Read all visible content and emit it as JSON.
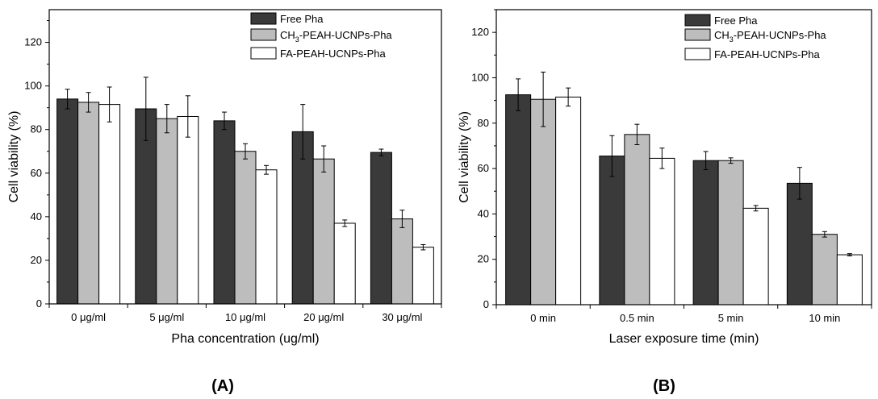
{
  "chart_data": [
    {
      "type": "bar",
      "panel_label": "(A)",
      "xlabel": "Pha concentration (ug/ml)",
      "ylabel": "Cell viability (%)",
      "ylim": [
        0,
        135
      ],
      "yticks": [
        0,
        20,
        40,
        60,
        80,
        100,
        120
      ],
      "categories": [
        "0 μg/ml",
        "5 μg/ml",
        "10 μg/ml",
        "20 μg/ml",
        "30 μg/ml"
      ],
      "series": [
        {
          "name": "Free Pha",
          "legend_main": "Free Pha",
          "legend_sub": "",
          "legend_rest": "",
          "color": "#3a3a3a",
          "values": [
            94,
            89.5,
            84,
            79,
            69.5
          ],
          "errors": [
            4.5,
            14.5,
            4,
            12.5,
            1.5
          ]
        },
        {
          "name": "CH3-PEAH-UCNPs-Pha",
          "legend_main": "CH",
          "legend_sub": "3",
          "legend_rest": "-PEAH-UCNPs-Pha",
          "color": "#bdbdbd",
          "values": [
            92.5,
            85,
            70,
            66.5,
            39
          ],
          "errors": [
            4.5,
            6.5,
            3.5,
            6,
            4
          ]
        },
        {
          "name": "FA-PEAH-UCNPs-Pha",
          "legend_main": "FA-PEAH-UCNPs-Pha",
          "legend_sub": "",
          "legend_rest": "",
          "color": "#ffffff",
          "values": [
            91.5,
            86,
            61.5,
            37,
            26
          ],
          "errors": [
            8,
            9.5,
            2,
            1.5,
            1.2
          ]
        }
      ],
      "legend_position": "top-right",
      "grid": false
    },
    {
      "type": "bar",
      "panel_label": "(B)",
      "xlabel": "Laser exposure time (min)",
      "ylabel": "Cell viability (%)",
      "ylim": [
        0,
        130
      ],
      "yticks": [
        0,
        20,
        40,
        60,
        80,
        100,
        120
      ],
      "categories": [
        "0 min",
        "0.5 min",
        "5 min",
        "10 min"
      ],
      "series": [
        {
          "name": "Free Pha",
          "legend_main": "Free Pha",
          "legend_sub": "",
          "legend_rest": "",
          "color": "#3a3a3a",
          "values": [
            92.5,
            65.5,
            63.5,
            53.5
          ],
          "errors": [
            7,
            9,
            4,
            7
          ]
        },
        {
          "name": "CH3-PEAH-UCNPs-Pha",
          "legend_main": "CH",
          "legend_sub": "3",
          "legend_rest": "-PEAH-UCNPs-Pha",
          "color": "#bdbdbd",
          "values": [
            90.5,
            75,
            63.5,
            31
          ],
          "errors": [
            12,
            4.5,
            1.2,
            1.2
          ]
        },
        {
          "name": "FA-PEAH-UCNPs-Pha",
          "legend_main": "FA-PEAH-UCNPs-Pha",
          "legend_sub": "",
          "legend_rest": "",
          "color": "#ffffff",
          "values": [
            91.5,
            64.5,
            42.5,
            22
          ],
          "errors": [
            4,
            4.5,
            1.2,
            0.5
          ]
        }
      ],
      "legend_position": "top-right",
      "grid": false
    }
  ]
}
